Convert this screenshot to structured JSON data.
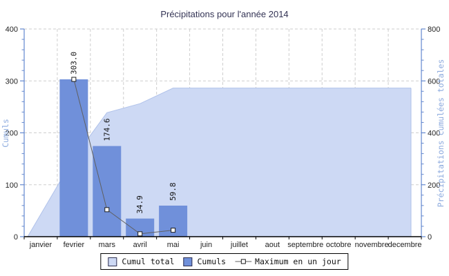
{
  "chart_data": {
    "type": "bar",
    "subtype": "combo-bar-area-line",
    "title": "Précipitations pour l'année 2014",
    "categories": [
      "janvier",
      "fevrier",
      "mars",
      "avril",
      "mai",
      "juin",
      "juillet",
      "aout",
      "septembre",
      "octobre",
      "novembre",
      "decembre"
    ],
    "left_axis": {
      "label": "Cumuls",
      "min": 0,
      "max": 400,
      "major_ticks": [
        0,
        100,
        200,
        300,
        400
      ],
      "minor_step": 20
    },
    "right_axis": {
      "label": "Précipitations cumulées totales",
      "min": 0,
      "max": 800,
      "major_ticks": [
        0,
        200,
        400,
        600,
        800
      ],
      "minor_step": 40
    },
    "series": [
      {
        "name": "Cumul total",
        "type": "area",
        "axis": "right",
        "values": [
          0,
          303.0,
          477.6,
          512.5,
          572.3,
          572.3,
          572.3,
          572.3,
          572.3,
          572.3,
          572.3,
          572.3
        ]
      },
      {
        "name": "Cumuls",
        "type": "bar",
        "axis": "left",
        "values": [
          null,
          303.0,
          174.6,
          34.9,
          59.8,
          null,
          null,
          null,
          null,
          null,
          null,
          null
        ],
        "show_value_labels": true
      },
      {
        "name": "Maximum en un jour",
        "type": "line",
        "axis": "left",
        "values": [
          null,
          303.0,
          52.0,
          5.5,
          12.5,
          null,
          null,
          null,
          null,
          null,
          null,
          null
        ]
      }
    ],
    "legend": {
      "position": "bottom",
      "items": [
        "Cumul total",
        "Cumuls",
        "Maximum en un jour"
      ]
    },
    "grid": "dashed horizontal and vertical"
  },
  "colors": {
    "area_fill": "#cdd9f4",
    "area_edge": "#b0c2ea",
    "bar_fill": "#7090da",
    "line": "#5f5f5f",
    "marker_fill": "#ffffff",
    "marker_edge": "#1a1a1a",
    "axis_blue": "#6287ce",
    "axis_title_blue": "#8caade",
    "title_text": "#333354",
    "tick_text": "#222222",
    "grid": "#cdcdcd",
    "x_axis_black": "#000000"
  }
}
